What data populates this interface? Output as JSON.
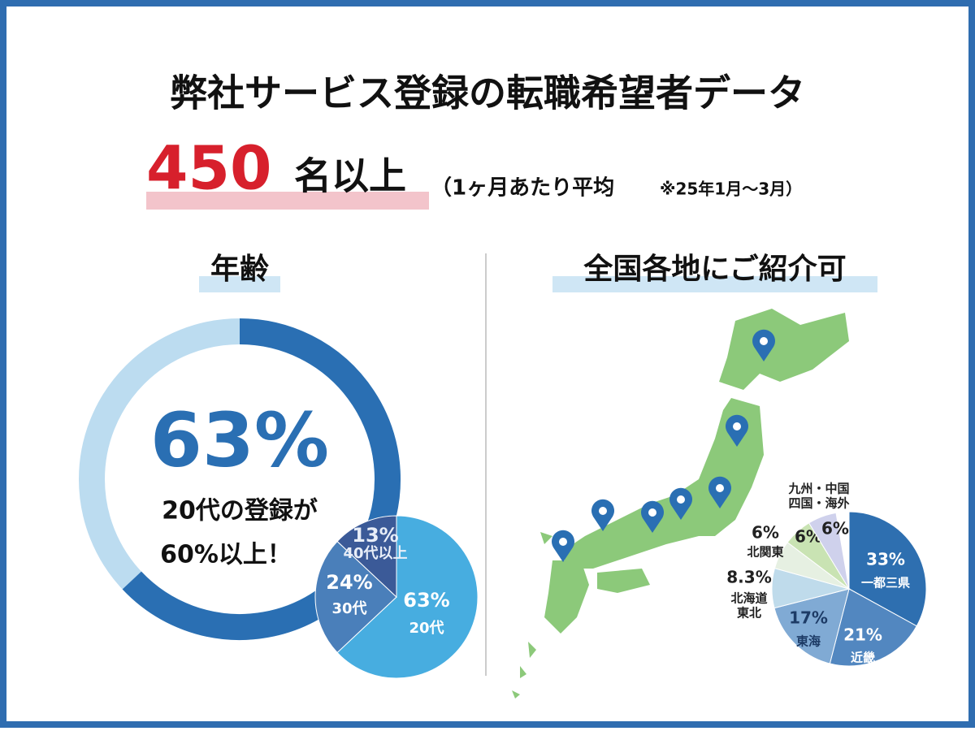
{
  "header": {
    "title": "弊社サービス登録の転職希望者データ",
    "count": 450,
    "count_suffix": "名以上",
    "note": "（1ヶ月あたり平均",
    "period": "※25年1月〜3月）"
  },
  "sections": {
    "age": "年齢",
    "region": "全国各地にご紹介可"
  },
  "chart_data": [
    {
      "type": "donut",
      "values": [
        63
      ],
      "value_labels": [
        "63%"
      ],
      "color": "#2a6fb3",
      "track_color": "#bcdcf0",
      "annotations": [
        "20代の登録が",
        "60%以上！"
      ]
    },
    {
      "type": "pie",
      "categories": [
        [
          "20代"
        ],
        [
          "30代"
        ],
        [
          "40代以上"
        ]
      ],
      "values": [
        63,
        24,
        13
      ],
      "value_labels": [
        "63%",
        "24%",
        "13%"
      ],
      "colors": [
        "#47ade0",
        "#4a7fba",
        "#3b5a98"
      ]
    },
    {
      "type": "pie",
      "categories": [
        [
          "一都三県"
        ],
        [
          "近畿"
        ],
        [
          "東海"
        ],
        [
          "北海道",
          "東北"
        ],
        [
          "北関東"
        ],
        null,
        [
          "九州・中国",
          "四国・海外"
        ]
      ],
      "values": [
        33,
        21,
        17,
        8.3,
        6,
        6,
        6
      ],
      "value_labels": [
        "33%",
        "21%",
        "17%",
        "8.3%",
        "6%",
        "6%",
        "6%"
      ],
      "colors": [
        "#2e6fb0",
        "#5287c0",
        "#80aad4",
        "#bfdbeb",
        "#e6f0e2",
        "#c9e3b3",
        "#cfd1ec"
      ]
    }
  ]
}
